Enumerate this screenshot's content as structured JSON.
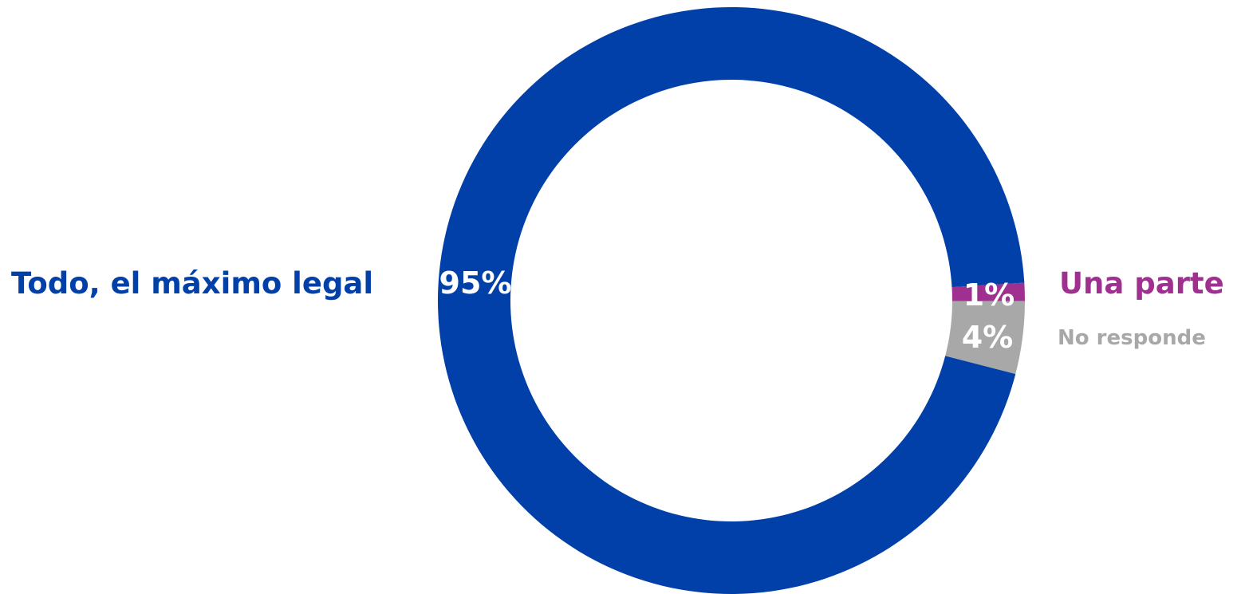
{
  "chart_data": {
    "type": "pie",
    "variant": "donut",
    "categories": [
      "Todo, el máximo legal",
      "Una parte",
      "No responde"
    ],
    "values": [
      95,
      1,
      4
    ],
    "value_labels": [
      "95%",
      "1%",
      "4%"
    ],
    "colors": [
      "#0040a8",
      "#a0308f",
      "#a8a8a8"
    ],
    "title": "",
    "legend": "labels beside chart"
  }
}
